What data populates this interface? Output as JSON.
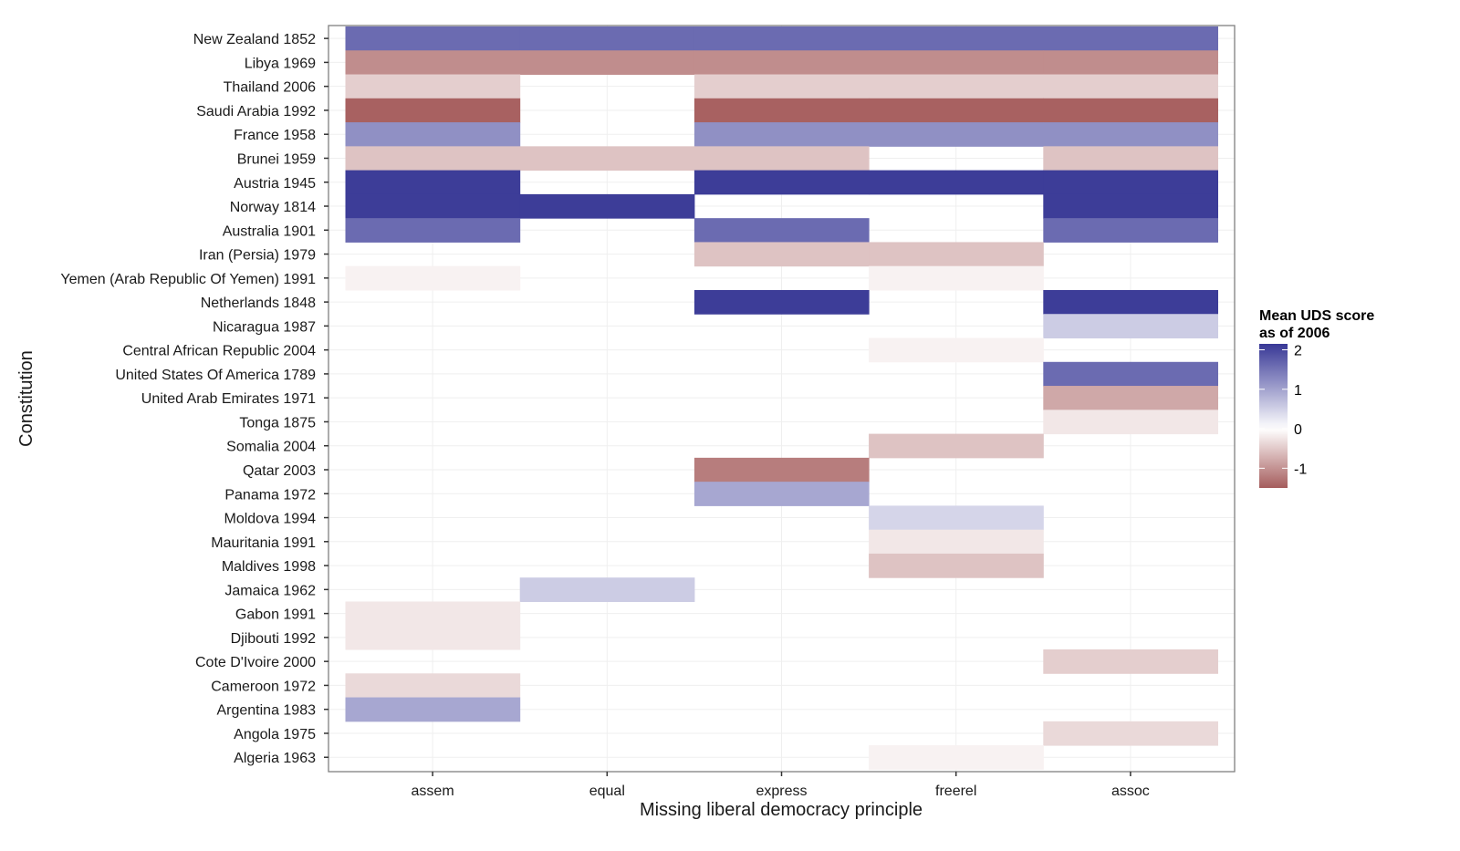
{
  "chart_data": {
    "type": "heatmap",
    "title": "",
    "xlabel": "Missing liberal democracy principle",
    "ylabel": "Constitution",
    "x_categories": [
      "assem",
      "equal",
      "express",
      "freerel",
      "assoc"
    ],
    "y_categories": [
      "New Zealand 1852",
      "Libya 1969",
      "Thailand 2006",
      "Saudi Arabia 1992",
      "France 1958",
      "Brunei 1959",
      "Austria 1945",
      "Norway 1814",
      "Australia 1901",
      "Iran (Persia) 1979",
      "Yemen (Arab Republic Of Yemen) 1991",
      "Netherlands 1848",
      "Nicaragua 1987",
      "Central African Republic 2004",
      "United States Of America 1789",
      "United Arab Emirates 1971",
      "Tonga 1875",
      "Somalia 2004",
      "Qatar 2003",
      "Panama 1972",
      "Moldova 1994",
      "Mauritania 1991",
      "Maldives 1998",
      "Jamaica 1962",
      "Gabon 1991",
      "Djibouti 1992",
      "Cote D'Ivoire 2000",
      "Cameroon 1972",
      "Argentina 1983",
      "Angola 1975",
      "Algeria 1963"
    ],
    "cells": [
      {
        "y": "New Zealand 1852",
        "x": [
          "assem",
          "equal",
          "express",
          "freerel",
          "assoc"
        ],
        "value": 1.6
      },
      {
        "y": "Libya 1969",
        "x": [
          "assem",
          "equal",
          "express",
          "freerel",
          "assoc"
        ],
        "value": -1.05
      },
      {
        "y": "Thailand 2006",
        "x": [
          "assem",
          "express",
          "freerel",
          "assoc"
        ],
        "value": -0.45
      },
      {
        "y": "Saudi Arabia 1992",
        "x": [
          "assem",
          "express",
          "freerel",
          "assoc"
        ],
        "value": -1.45
      },
      {
        "y": "France 1958",
        "x": [
          "assem",
          "express",
          "freerel",
          "assoc"
        ],
        "value": 1.2
      },
      {
        "y": "Brunei 1959",
        "x": [
          "assem",
          "equal",
          "express",
          "assoc"
        ],
        "value": -0.55
      },
      {
        "y": "Austria 1945",
        "x": [
          "assem",
          "express",
          "freerel",
          "assoc"
        ],
        "value": 2.1
      },
      {
        "y": "Norway 1814",
        "x": [
          "assem",
          "equal",
          "assoc"
        ],
        "value": 2.1
      },
      {
        "y": "Australia 1901",
        "x": [
          "assem",
          "express",
          "assoc"
        ],
        "value": 1.6
      },
      {
        "y": "Iran (Persia) 1979",
        "x": [
          "express",
          "freerel"
        ],
        "value": -0.55
      },
      {
        "y": "Yemen (Arab Republic Of Yemen) 1991",
        "x": [
          "assem",
          "freerel"
        ],
        "value": -0.12
      },
      {
        "y": "Netherlands 1848",
        "x": [
          "express",
          "assoc"
        ],
        "value": 2.1
      },
      {
        "y": "Nicaragua 1987",
        "x": [
          "assoc"
        ],
        "value": 0.55
      },
      {
        "y": "Central African Republic 2004",
        "x": [
          "freerel"
        ],
        "value": -0.12
      },
      {
        "y": "United States Of America 1789",
        "x": [
          "assoc"
        ],
        "value": 1.6
      },
      {
        "y": "United Arab Emirates 1971",
        "x": [
          "assoc"
        ],
        "value": -0.8
      },
      {
        "y": "Tonga 1875",
        "x": [
          "assoc"
        ],
        "value": -0.22
      },
      {
        "y": "Somalia 2004",
        "x": [
          "freerel"
        ],
        "value": -0.55
      },
      {
        "y": "Qatar 2003",
        "x": [
          "express"
        ],
        "value": -1.2
      },
      {
        "y": "Panama 1972",
        "x": [
          "express"
        ],
        "value": 0.95
      },
      {
        "y": "Moldova 1994",
        "x": [
          "freerel"
        ],
        "value": 0.45
      },
      {
        "y": "Mauritania 1991",
        "x": [
          "freerel"
        ],
        "value": -0.22
      },
      {
        "y": "Maldives 1998",
        "x": [
          "freerel"
        ],
        "value": -0.55
      },
      {
        "y": "Jamaica 1962",
        "x": [
          "equal"
        ],
        "value": 0.55
      },
      {
        "y": "Gabon 1991",
        "x": [
          "assem"
        ],
        "value": -0.22
      },
      {
        "y": "Djibouti 1992",
        "x": [
          "assem"
        ],
        "value": -0.22
      },
      {
        "y": "Cote D'Ivoire 2000",
        "x": [
          "assoc"
        ],
        "value": -0.45
      },
      {
        "y": "Cameroon 1972",
        "x": [
          "assem"
        ],
        "value": -0.35
      },
      {
        "y": "Argentina 1983",
        "x": [
          "assem"
        ],
        "value": 0.95
      },
      {
        "y": "Angola 1975",
        "x": [
          "assoc"
        ],
        "value": -0.35
      },
      {
        "y": "Algeria 1963",
        "x": [
          "freerel"
        ],
        "value": -0.12
      }
    ],
    "legend": {
      "title_line1": "Mean UDS score",
      "title_line2": "as of 2006",
      "ticks": [
        2,
        1,
        0,
        -1
      ],
      "range": [
        -1.5,
        2.15
      ],
      "position": "right"
    },
    "colors": {
      "low": "#a55c5c",
      "mid": "#ffffff",
      "high": "#383896"
    },
    "grid": true
  }
}
